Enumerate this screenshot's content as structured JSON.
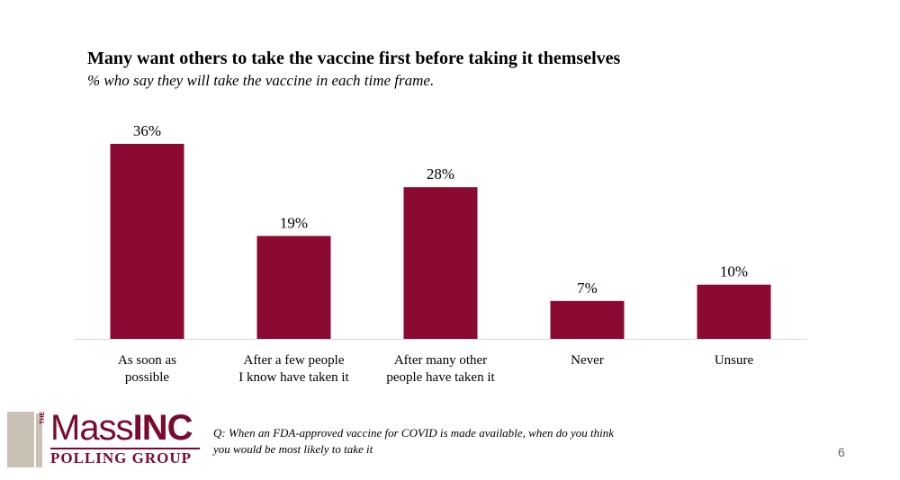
{
  "chart_data": {
    "type": "bar",
    "title": "Many want others to take the vaccine first before taking it themselves",
    "subtitle": "% who say they will take the vaccine in each time frame.",
    "categories": [
      [
        "As soon as",
        "possible"
      ],
      [
        "After a few people",
        "I know have taken it"
      ],
      [
        "After many other",
        "people have taken it"
      ],
      [
        "Never"
      ],
      [
        "Unsure"
      ]
    ],
    "values": [
      36,
      19,
      28,
      7,
      10
    ],
    "value_labels": [
      "36%",
      "19%",
      "28%",
      "7%",
      "10%"
    ],
    "ylim": [
      0,
      36
    ],
    "grid": false,
    "legend": "none",
    "bar_color": "#8b0a32",
    "axis_color": "#d9d9d9"
  },
  "logo": {
    "the": "THE",
    "name_regular": "Mass",
    "name_bold": "INC",
    "subtitle": "POLLING GROUP",
    "color": "#7a0a2e"
  },
  "footnote": {
    "line1": "Q: When an FDA-approved vaccine for COVID is made available, when do you think",
    "line2": "you would be most likely to take it"
  },
  "page_number": "6"
}
